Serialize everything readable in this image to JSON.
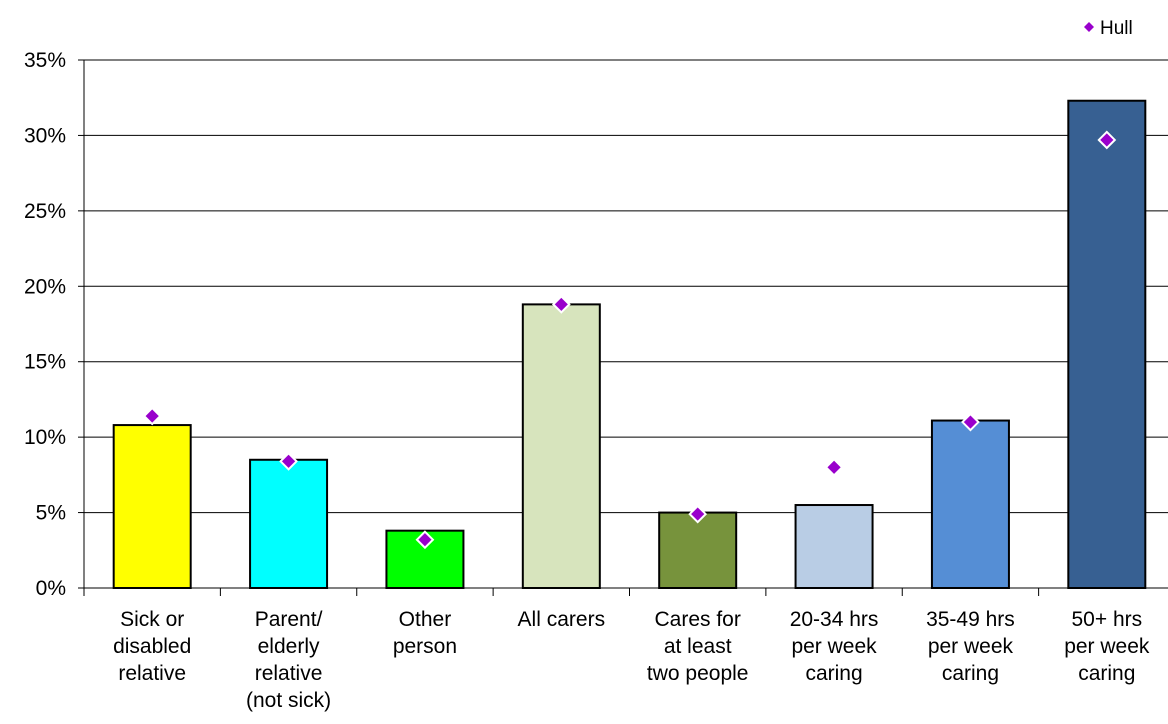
{
  "chart_data": {
    "type": "bar",
    "categories": [
      [
        "Sick or",
        "disabled",
        "relative"
      ],
      [
        "Parent/",
        "elderly",
        "relative",
        "(not sick)"
      ],
      [
        "Other",
        "person"
      ],
      [
        "All carers"
      ],
      [
        "Cares for",
        "at least",
        "two people"
      ],
      [
        "20-34 hrs",
        "per week",
        "caring"
      ],
      [
        "35-49 hrs",
        "per week",
        "caring"
      ],
      [
        "50+ hrs",
        "per week",
        "caring"
      ]
    ],
    "values": [
      10.8,
      8.5,
      3.8,
      18.8,
      5.0,
      5.5,
      11.1,
      32.3
    ],
    "bar_colors": [
      "#ffff00",
      "#00ffff",
      "#00ff00",
      "#d7e4bd",
      "#77933c",
      "#b9cde5",
      "#558ed5",
      "#376092"
    ],
    "series": [
      {
        "name": "Hull",
        "type": "scatter",
        "marker": "diamond",
        "color": "#9900cc",
        "values": [
          11.4,
          8.4,
          3.2,
          18.8,
          4.9,
          8.0,
          11.0,
          29.7
        ]
      }
    ],
    "yticks": [
      "0%",
      "5%",
      "10%",
      "15%",
      "20%",
      "25%",
      "30%",
      "35%"
    ],
    "ylim": [
      0,
      35
    ],
    "grid": true,
    "legend": "top-right",
    "title": "",
    "xlabel": "",
    "ylabel": ""
  }
}
